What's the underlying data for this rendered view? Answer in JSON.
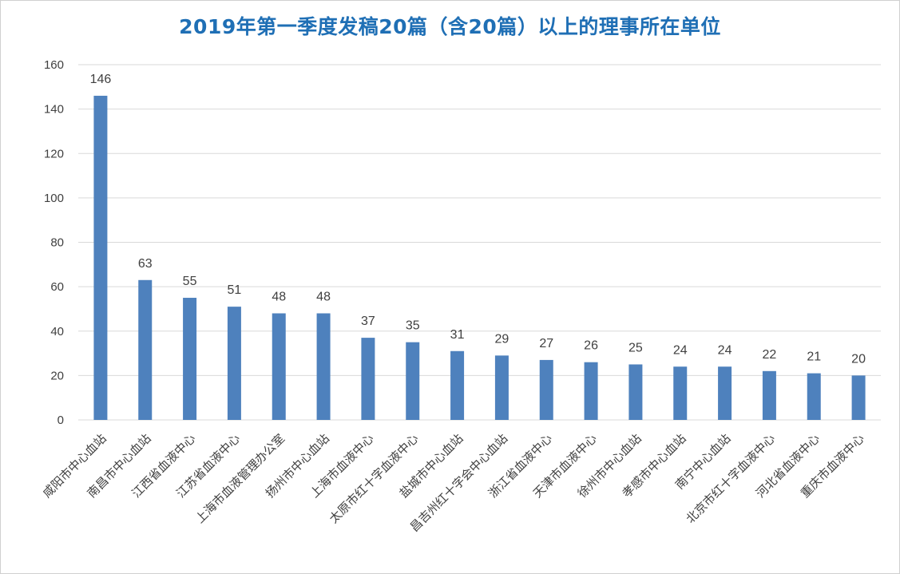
{
  "chart_data": {
    "type": "bar",
    "title": "2019年第一季度发稿20篇（含20篇）以上的理事所在单位",
    "xlabel": "",
    "ylabel": "",
    "ylim": [
      0,
      160
    ],
    "yticks": [
      0,
      20,
      40,
      60,
      80,
      100,
      120,
      140,
      160
    ],
    "grid": true,
    "categories": [
      "咸阳市中心血站",
      "南昌市中心血站",
      "江西省血液中心",
      "江苏省血液中心",
      "上海市血液管理办公室",
      "扬州市中心血站",
      "上海市血液中心",
      "太原市红十字血液中心",
      "盐城市中心血站",
      "昌吉州红十字会中心血站",
      "浙江省血液中心",
      "天津市血液中心",
      "徐州市中心血站",
      "孝感市中心血站",
      "南宁中心血站",
      "北京市红十字血液中心",
      "河北省血液中心",
      "重庆市血液中心"
    ],
    "values": [
      146,
      63,
      55,
      51,
      48,
      48,
      37,
      35,
      31,
      29,
      27,
      26,
      25,
      24,
      24,
      22,
      21,
      20
    ],
    "bar_color": "#4e81bd",
    "grid_color": "#d9d9d9"
  }
}
